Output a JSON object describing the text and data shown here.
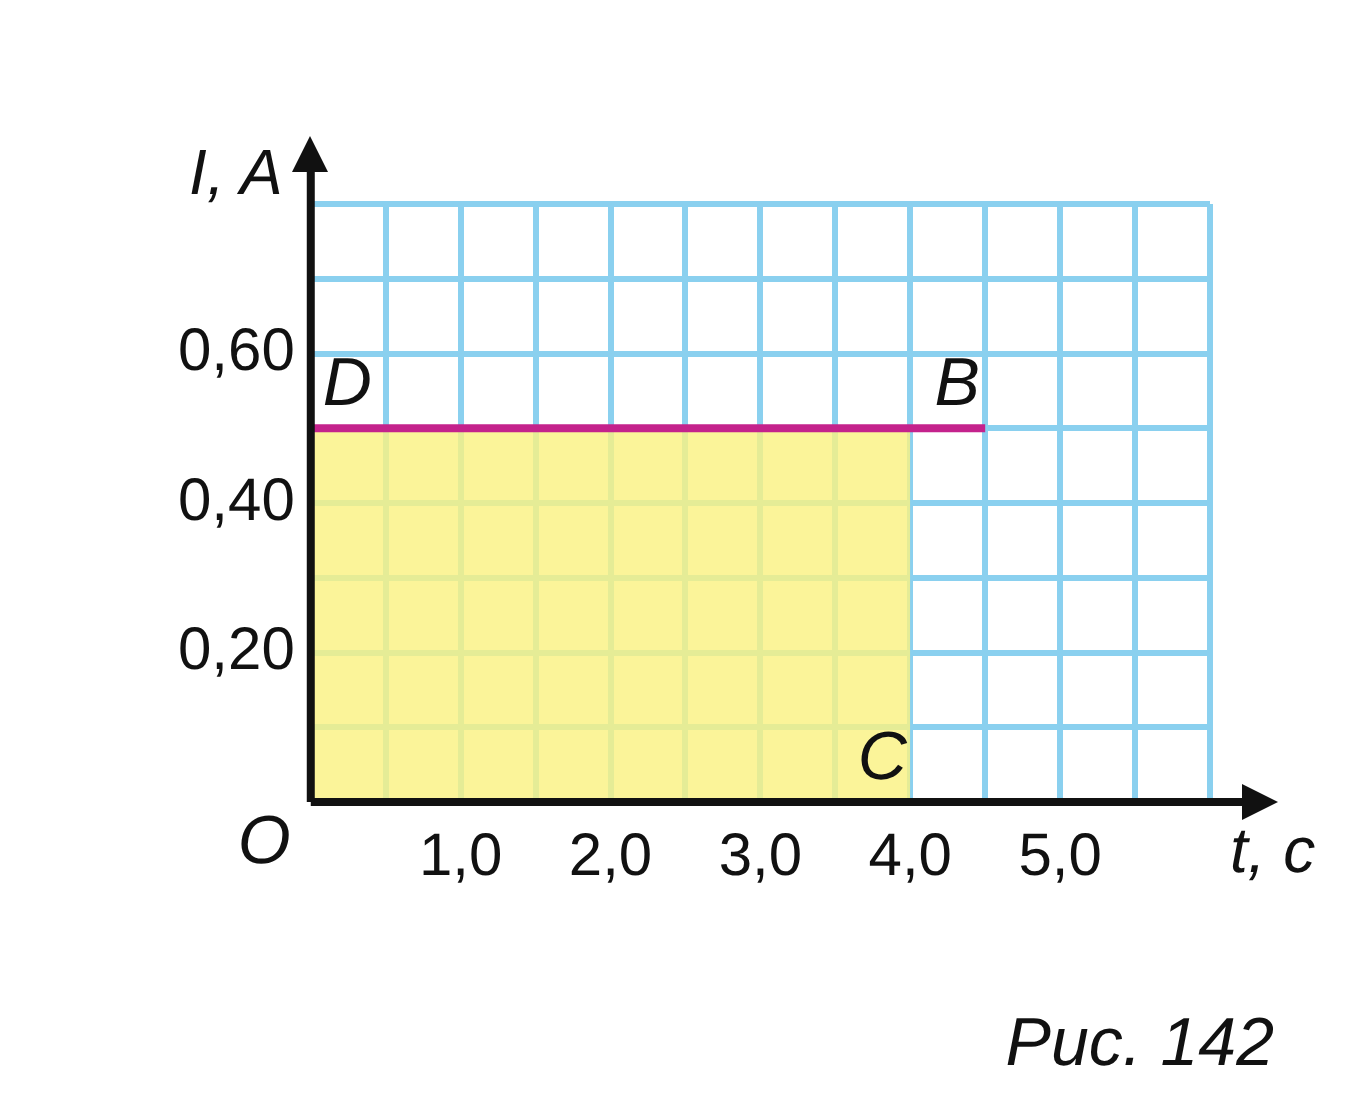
{
  "chart_data": {
    "type": "line",
    "xlabel": "t, c",
    "ylabel": "I, A",
    "xlim": [
      0,
      6
    ],
    "ylim": [
      0,
      0.8
    ],
    "xticks": [
      {
        "value": 0.5,
        "label": null
      },
      {
        "value": 1,
        "label": "1,0"
      },
      {
        "value": 1.5,
        "label": null
      },
      {
        "value": 2,
        "label": "2,0"
      },
      {
        "value": 2.5,
        "label": null
      },
      {
        "value": 3,
        "label": "3,0"
      },
      {
        "value": 3.5,
        "label": null
      },
      {
        "value": 4,
        "label": "4,0"
      },
      {
        "value": 4.5,
        "label": null
      },
      {
        "value": 5,
        "label": "5,0"
      },
      {
        "value": 5.5,
        "label": null
      },
      {
        "value": 6,
        "label": null
      }
    ],
    "yticks": [
      {
        "value": 0.1,
        "label": null
      },
      {
        "value": 0.2,
        "label": "0,20"
      },
      {
        "value": 0.3,
        "label": null
      },
      {
        "value": 0.4,
        "label": "0,40"
      },
      {
        "value": 0.5,
        "label": null
      },
      {
        "value": 0.6,
        "label": "0,60"
      },
      {
        "value": 0.7,
        "label": null
      },
      {
        "value": 0.8,
        "label": null
      }
    ],
    "grid": true,
    "legend": false,
    "marker": "none",
    "series": [
      {
        "type": "area",
        "color": "#faf282",
        "x": [
          0,
          4
        ],
        "values": [
          0.5,
          0.5
        ]
      },
      {
        "type": "line",
        "color": "#c4228c",
        "x": [
          0,
          4.5
        ],
        "values": [
          0.5,
          0.5
        ]
      }
    ],
    "annotations": [
      {
        "text": "O",
        "x": 0,
        "y": 0
      },
      {
        "text": "D",
        "x": 0,
        "y": 0.5
      },
      {
        "text": "B",
        "x": 4.5,
        "y": 0.5
      },
      {
        "text": "C",
        "x": 4,
        "y": 0
      },
      "Рис. 142"
    ]
  }
}
